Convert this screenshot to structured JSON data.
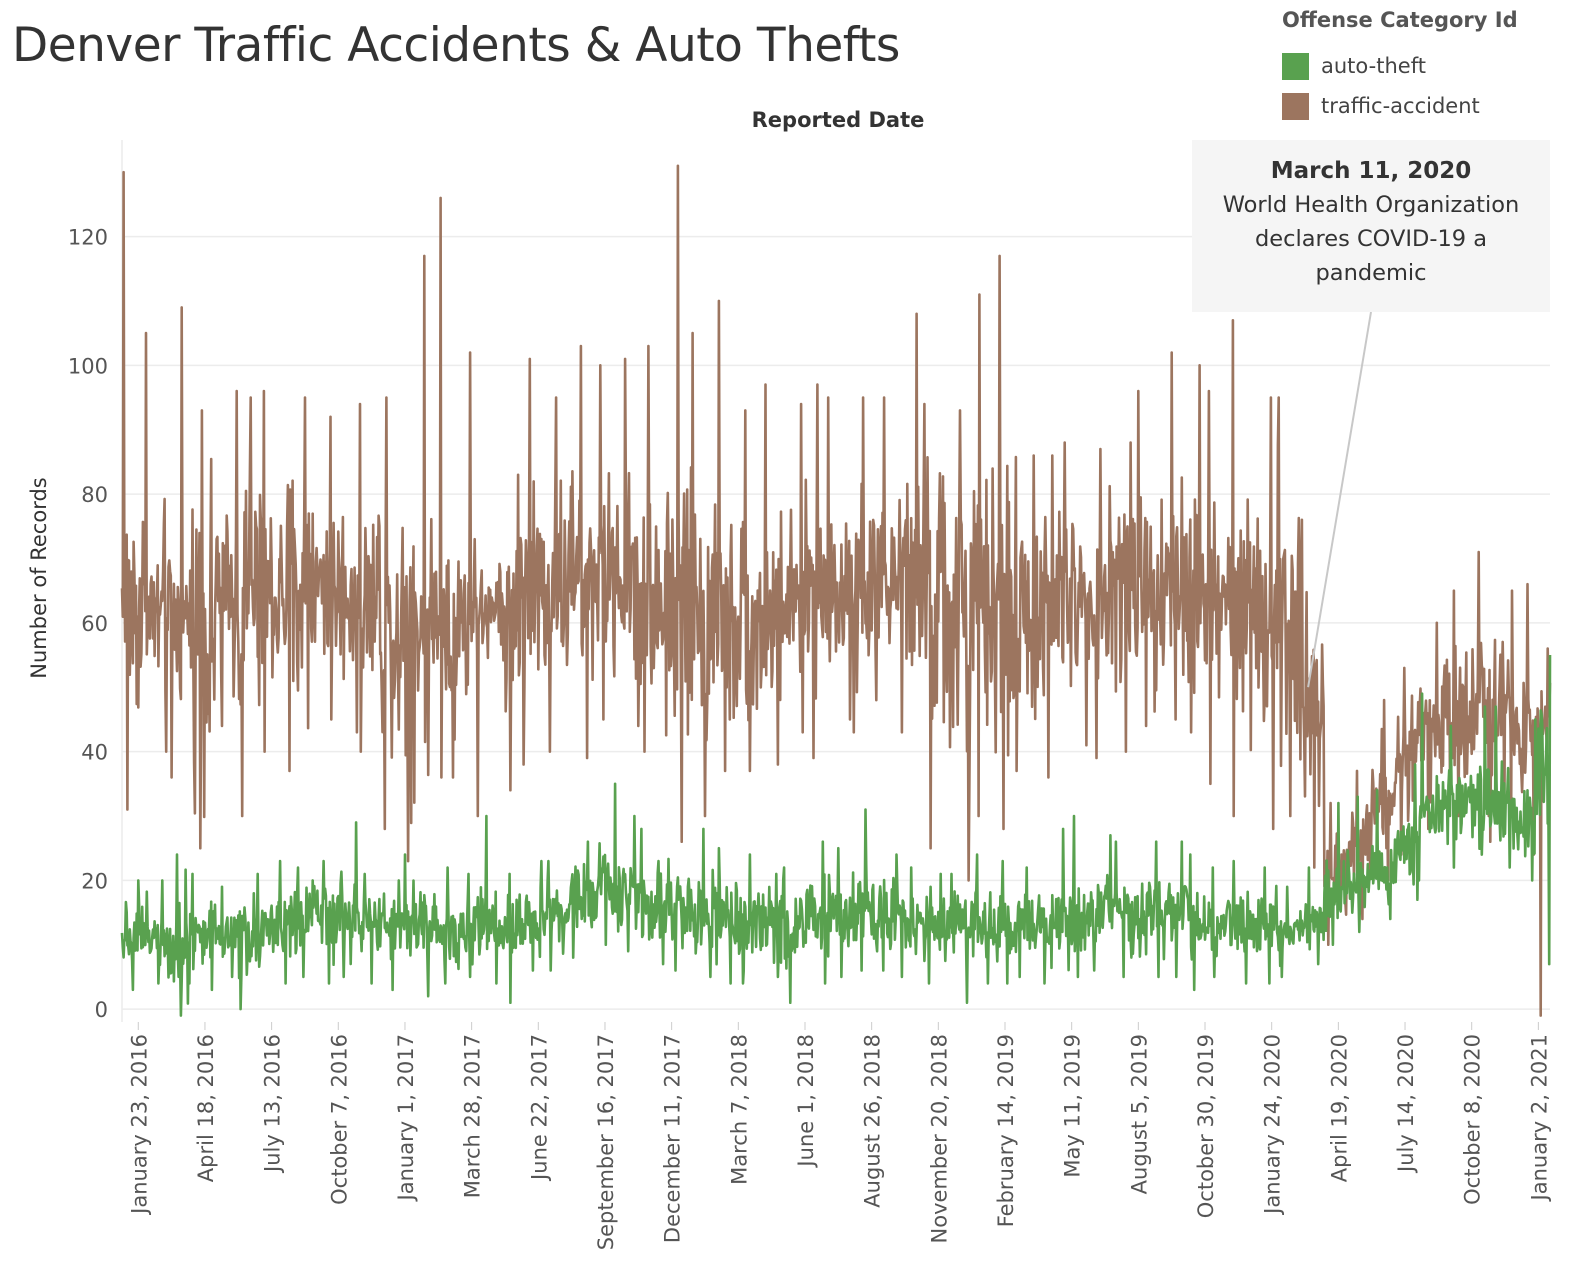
{
  "title": "Denver Traffic Accidents & Auto Thefts",
  "legend": {
    "title": "Offense Category Id",
    "items": [
      {
        "label": "auto-theft",
        "color": "#59a14f"
      },
      {
        "label": "traffic-accident",
        "color": "#9c755f"
      }
    ]
  },
  "annotation": {
    "date": "March 11, 2020",
    "text": "World Health Organization declares COVID-19 a pandemic"
  },
  "chart_data": {
    "type": "line",
    "xlabel": "Reported Date",
    "ylabel": "Number of Records",
    "x_range": [
      "2016-01-02",
      "2021-01-17"
    ],
    "ylim": [
      -2,
      135
    ],
    "y_ticks": [
      0,
      20,
      40,
      60,
      80,
      100,
      120
    ],
    "x_ticks": [
      {
        "date": "2016-01-23",
        "label": "January 23, 2016"
      },
      {
        "date": "2016-04-18",
        "label": "April 18, 2016"
      },
      {
        "date": "2016-07-13",
        "label": "July 13, 2016"
      },
      {
        "date": "2016-10-07",
        "label": "October 7, 2016"
      },
      {
        "date": "2017-01-01",
        "label": "January 1, 2017"
      },
      {
        "date": "2017-03-28",
        "label": "March 28, 2017"
      },
      {
        "date": "2017-06-22",
        "label": "June 22, 2017"
      },
      {
        "date": "2017-09-16",
        "label": "September 16, 2017"
      },
      {
        "date": "2017-12-11",
        "label": "December 11, 2017"
      },
      {
        "date": "2018-03-07",
        "label": "March 7, 2018"
      },
      {
        "date": "2018-06-01",
        "label": "June 1, 2018"
      },
      {
        "date": "2018-08-26",
        "label": "August 26, 2018"
      },
      {
        "date": "2018-11-20",
        "label": "November 20, 2018"
      },
      {
        "date": "2019-02-14",
        "label": "February 14, 2019"
      },
      {
        "date": "2019-05-11",
        "label": "May 11, 2019"
      },
      {
        "date": "2019-08-05",
        "label": "August 5, 2019"
      },
      {
        "date": "2019-10-30",
        "label": "October 30, 2019"
      },
      {
        "date": "2020-01-24",
        "label": "January 24, 2020"
      },
      {
        "date": "2020-04-19",
        "label": "April 19, 2020"
      },
      {
        "date": "2020-07-14",
        "label": "July 14, 2020"
      },
      {
        "date": "2020-10-08",
        "label": "October 8, 2020"
      },
      {
        "date": "2021-01-02",
        "label": "January 2, 2021"
      }
    ],
    "gridlines": true,
    "annotation_date": "2020-03-11",
    "series": [
      {
        "name": "traffic-accident",
        "color": "#9c755f",
        "daily_mean_by_month": [
          {
            "month": "2016-01",
            "mean": 62,
            "min": 31,
            "max": 130
          },
          {
            "month": "2016-02",
            "mean": 61,
            "min": 40,
            "max": 105
          },
          {
            "month": "2016-03",
            "mean": 60,
            "min": 36,
            "max": 109
          },
          {
            "month": "2016-04",
            "mean": 59,
            "min": 25,
            "max": 93
          },
          {
            "month": "2016-05",
            "mean": 64,
            "min": 44,
            "max": 96
          },
          {
            "month": "2016-06",
            "mean": 63,
            "min": 30,
            "max": 95
          },
          {
            "month": "2016-07",
            "mean": 64,
            "min": 40,
            "max": 96
          },
          {
            "month": "2016-08",
            "mean": 65,
            "min": 37,
            "max": 95
          },
          {
            "month": "2016-09",
            "mean": 66,
            "min": 45,
            "max": 92
          },
          {
            "month": "2016-10",
            "mean": 65,
            "min": 43,
            "max": 106
          },
          {
            "month": "2016-11",
            "mean": 64,
            "min": 40,
            "max": 94
          },
          {
            "month": "2016-12",
            "mean": 60,
            "min": 28,
            "max": 95
          },
          {
            "month": "2017-01",
            "mean": 61,
            "min": 23,
            "max": 117
          },
          {
            "month": "2017-02",
            "mean": 60,
            "min": 36,
            "max": 126
          },
          {
            "month": "2017-03",
            "mean": 60,
            "min": 36,
            "max": 102
          },
          {
            "month": "2017-04",
            "mean": 61,
            "min": 30,
            "max": 73
          },
          {
            "month": "2017-05",
            "mean": 62,
            "min": 34,
            "max": 83
          },
          {
            "month": "2017-06",
            "mean": 65,
            "min": 38,
            "max": 101
          },
          {
            "month": "2017-07",
            "mean": 66,
            "min": 40,
            "max": 95
          },
          {
            "month": "2017-08",
            "mean": 67,
            "min": 39,
            "max": 103
          },
          {
            "month": "2017-09",
            "mean": 68,
            "min": 45,
            "max": 100
          },
          {
            "month": "2017-10",
            "mean": 67,
            "min": 44,
            "max": 101
          },
          {
            "month": "2017-11",
            "mean": 63,
            "min": 40,
            "max": 103
          },
          {
            "month": "2017-12",
            "mean": 62,
            "min": 26,
            "max": 131
          },
          {
            "month": "2018-01",
            "mean": 61,
            "min": 30,
            "max": 105
          },
          {
            "month": "2018-02",
            "mean": 62,
            "min": 37,
            "max": 110
          },
          {
            "month": "2018-03",
            "mean": 60,
            "min": 37,
            "max": 93
          },
          {
            "month": "2018-04",
            "mean": 61,
            "min": 38,
            "max": 97
          },
          {
            "month": "2018-05",
            "mean": 63,
            "min": 43,
            "max": 94
          },
          {
            "month": "2018-06",
            "mean": 64,
            "min": 39,
            "max": 97
          },
          {
            "month": "2018-07",
            "mean": 65,
            "min": 45,
            "max": 95
          },
          {
            "month": "2018-08",
            "mean": 66,
            "min": 43,
            "max": 95
          },
          {
            "month": "2018-09",
            "mean": 67,
            "min": 48,
            "max": 95
          },
          {
            "month": "2018-10",
            "mean": 66,
            "min": 43,
            "max": 108
          },
          {
            "month": "2018-11",
            "mean": 62,
            "min": 25,
            "max": 94
          },
          {
            "month": "2018-12",
            "mean": 60,
            "min": 20,
            "max": 93
          },
          {
            "month": "2019-01",
            "mean": 62,
            "min": 30,
            "max": 111
          },
          {
            "month": "2019-02",
            "mean": 61,
            "min": 28,
            "max": 117
          },
          {
            "month": "2019-03",
            "mean": 60,
            "min": 37,
            "max": 86
          },
          {
            "month": "2019-04",
            "mean": 62,
            "min": 36,
            "max": 86
          },
          {
            "month": "2019-05",
            "mean": 63,
            "min": 41,
            "max": 88
          },
          {
            "month": "2019-06",
            "mean": 64,
            "min": 39,
            "max": 87
          },
          {
            "month": "2019-07",
            "mean": 65,
            "min": 40,
            "max": 88
          },
          {
            "month": "2019-08",
            "mean": 66,
            "min": 44,
            "max": 96
          },
          {
            "month": "2019-09",
            "mean": 67,
            "min": 45,
            "max": 102
          },
          {
            "month": "2019-10",
            "mean": 66,
            "min": 43,
            "max": 100
          },
          {
            "month": "2019-11",
            "mean": 62,
            "min": 35,
            "max": 96
          },
          {
            "month": "2019-12",
            "mean": 61,
            "min": 30,
            "max": 107
          },
          {
            "month": "2020-01",
            "mean": 60,
            "min": 28,
            "max": 95
          },
          {
            "month": "2020-02",
            "mean": 61,
            "min": 30,
            "max": 95
          },
          {
            "month": "2020-03",
            "mean": 48,
            "min": 22,
            "max": 76
          },
          {
            "month": "2020-04",
            "mean": 22,
            "min": 10,
            "max": 32
          },
          {
            "month": "2020-05",
            "mean": 26,
            "min": 14,
            "max": 37
          },
          {
            "month": "2020-06",
            "mean": 33,
            "min": 20,
            "max": 48
          },
          {
            "month": "2020-07",
            "mean": 40,
            "min": 24,
            "max": 53
          },
          {
            "month": "2020-08",
            "mean": 43,
            "min": 28,
            "max": 60
          },
          {
            "month": "2020-09",
            "mean": 46,
            "min": 30,
            "max": 65
          },
          {
            "month": "2020-10",
            "mean": 48,
            "min": 30,
            "max": 71
          },
          {
            "month": "2020-11",
            "mean": 45,
            "min": 26,
            "max": 65
          },
          {
            "month": "2020-12",
            "mean": 42,
            "min": 24,
            "max": 66
          },
          {
            "month": "2021-01",
            "mean": 45,
            "min": -1,
            "max": 56
          }
        ]
      },
      {
        "name": "auto-theft",
        "color": "#59a14f",
        "daily_mean_by_month": [
          {
            "month": "2016-01",
            "mean": 12,
            "min": 3,
            "max": 20
          },
          {
            "month": "2016-02",
            "mean": 12,
            "min": 4,
            "max": 20
          },
          {
            "month": "2016-03",
            "mean": 11,
            "min": -1,
            "max": 24
          },
          {
            "month": "2016-04",
            "mean": 12,
            "min": 3,
            "max": 21
          },
          {
            "month": "2016-05",
            "mean": 12,
            "min": 5,
            "max": 19
          },
          {
            "month": "2016-06",
            "mean": 12,
            "min": 0,
            "max": 21
          },
          {
            "month": "2016-07",
            "mean": 13,
            "min": 4,
            "max": 23
          },
          {
            "month": "2016-08",
            "mean": 13,
            "min": 5,
            "max": 22
          },
          {
            "month": "2016-09",
            "mean": 14,
            "min": 4,
            "max": 23
          },
          {
            "month": "2016-10",
            "mean": 14,
            "min": 5,
            "max": 29
          },
          {
            "month": "2016-11",
            "mean": 13,
            "min": 4,
            "max": 21
          },
          {
            "month": "2016-12",
            "mean": 13,
            "min": 3,
            "max": 20
          },
          {
            "month": "2017-01",
            "mean": 13,
            "min": 2,
            "max": 24
          },
          {
            "month": "2017-02",
            "mean": 13,
            "min": 4,
            "max": 22
          },
          {
            "month": "2017-03",
            "mean": 12,
            "min": 5,
            "max": 21
          },
          {
            "month": "2017-04",
            "mean": 13,
            "min": 4,
            "max": 30
          },
          {
            "month": "2017-05",
            "mean": 13,
            "min": 1,
            "max": 21
          },
          {
            "month": "2017-06",
            "mean": 14,
            "min": 6,
            "max": 23
          },
          {
            "month": "2017-07",
            "mean": 15,
            "min": 6,
            "max": 23
          },
          {
            "month": "2017-08",
            "mean": 17,
            "min": 8,
            "max": 26
          },
          {
            "month": "2017-09",
            "mean": 19,
            "min": 10,
            "max": 35
          },
          {
            "month": "2017-10",
            "mean": 18,
            "min": 9,
            "max": 30
          },
          {
            "month": "2017-11",
            "mean": 17,
            "min": 7,
            "max": 28
          },
          {
            "month": "2017-12",
            "mean": 16,
            "min": 6,
            "max": 29
          },
          {
            "month": "2018-01",
            "mean": 15,
            "min": 5,
            "max": 28
          },
          {
            "month": "2018-02",
            "mean": 14,
            "min": 4,
            "max": 25
          },
          {
            "month": "2018-03",
            "mean": 13,
            "min": 4,
            "max": 24
          },
          {
            "month": "2018-04",
            "mean": 13,
            "min": 5,
            "max": 21
          },
          {
            "month": "2018-05",
            "mean": 13,
            "min": 1,
            "max": 22
          },
          {
            "month": "2018-06",
            "mean": 14,
            "min": 4,
            "max": 26
          },
          {
            "month": "2018-07",
            "mean": 15,
            "min": 5,
            "max": 25
          },
          {
            "month": "2018-08",
            "mean": 16,
            "min": 6,
            "max": 31
          },
          {
            "month": "2018-09",
            "mean": 15,
            "min": 6,
            "max": 24
          },
          {
            "month": "2018-10",
            "mean": 14,
            "min": 5,
            "max": 22
          },
          {
            "month": "2018-11",
            "mean": 13,
            "min": 4,
            "max": 21
          },
          {
            "month": "2018-12",
            "mean": 13,
            "min": 1,
            "max": 21
          },
          {
            "month": "2019-01",
            "mean": 13,
            "min": 4,
            "max": 24
          },
          {
            "month": "2019-02",
            "mean": 13,
            "min": 4,
            "max": 23
          },
          {
            "month": "2019-03",
            "mean": 13,
            "min": 5,
            "max": 22
          },
          {
            "month": "2019-04",
            "mean": 13,
            "min": 4,
            "max": 28
          },
          {
            "month": "2019-05",
            "mean": 14,
            "min": 5,
            "max": 30
          },
          {
            "month": "2019-06",
            "mean": 15,
            "min": 6,
            "max": 27
          },
          {
            "month": "2019-07",
            "mean": 15,
            "min": 5,
            "max": 26
          },
          {
            "month": "2019-08",
            "mean": 15,
            "min": 5,
            "max": 26
          },
          {
            "month": "2019-09",
            "mean": 14,
            "min": 5,
            "max": 26
          },
          {
            "month": "2019-10",
            "mean": 14,
            "min": 3,
            "max": 24
          },
          {
            "month": "2019-11",
            "mean": 13,
            "min": 5,
            "max": 22
          },
          {
            "month": "2019-12",
            "mean": 13,
            "min": 4,
            "max": 23
          },
          {
            "month": "2020-01",
            "mean": 13,
            "min": 4,
            "max": 22
          },
          {
            "month": "2020-02",
            "mean": 12,
            "min": 5,
            "max": 19
          },
          {
            "month": "2020-03",
            "mean": 13,
            "min": 7,
            "max": 22
          },
          {
            "month": "2020-04",
            "mean": 18,
            "min": 10,
            "max": 32
          },
          {
            "month": "2020-05",
            "mean": 20,
            "min": 12,
            "max": 33
          },
          {
            "month": "2020-06",
            "mean": 22,
            "min": 14,
            "max": 34
          },
          {
            "month": "2020-07",
            "mean": 25,
            "min": 17,
            "max": 38
          },
          {
            "month": "2020-08",
            "mean": 29,
            "min": 20,
            "max": 49
          },
          {
            "month": "2020-09",
            "mean": 32,
            "min": 22,
            "max": 44
          },
          {
            "month": "2020-10",
            "mean": 33,
            "min": 24,
            "max": 47
          },
          {
            "month": "2020-11",
            "mean": 32,
            "min": 22,
            "max": 47
          },
          {
            "month": "2020-12",
            "mean": 30,
            "min": 20,
            "max": 45
          },
          {
            "month": "2021-01",
            "mean": 36,
            "min": 7,
            "max": 55
          }
        ]
      }
    ]
  }
}
